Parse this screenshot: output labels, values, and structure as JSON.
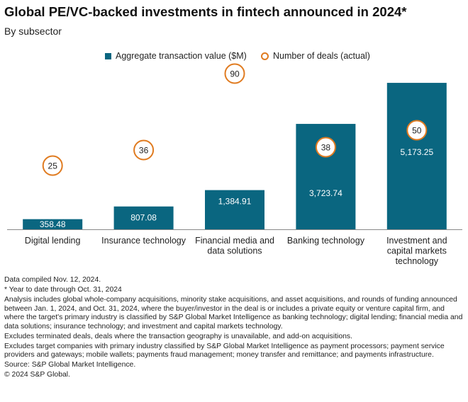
{
  "title": "Global PE/VC-backed investments in fintech announced in 2024*",
  "subtitle": "By subsector",
  "colors": {
    "bar": "#0a6680",
    "deals": "#e07b20",
    "bar_label": "#ffffff",
    "axis": "#888888"
  },
  "legend": {
    "bar_label": "Aggregate transaction value ($M)",
    "deals_label": "Number of deals (actual)"
  },
  "chart_data": {
    "type": "bar",
    "categories": [
      [
        "Digital lending"
      ],
      [
        "Insurance technology"
      ],
      [
        "Financial media and",
        "data solutions"
      ],
      [
        "Banking technology"
      ],
      [
        "Investment and",
        "capital markets",
        "technology"
      ]
    ],
    "series": [
      {
        "name": "Aggregate transaction value ($M)",
        "values": [
          358.48,
          807.08,
          1384.91,
          3723.74,
          5173.25
        ],
        "labels": [
          "358.48",
          "807.08",
          "1,384.91",
          "3,723.74",
          "5,173.25"
        ]
      },
      {
        "name": "Number of deals (actual)",
        "values": [
          25,
          36,
          90,
          38,
          50
        ],
        "labels": [
          "25",
          "36",
          "90",
          "38",
          "50"
        ]
      }
    ],
    "ylim": [
      0,
      5500
    ],
    "deals_lim": [
      0,
      100
    ]
  },
  "notes": [
    "Data compiled Nov. 12, 2024.",
    "* Year to date through Oct. 31, 2024",
    "Analysis includes global whole-company acquisitions, minority stake acquisitions, and asset acquisitions, and rounds of funding announced between Jan. 1, 2024, and Oct. 31, 2024, where the buyer/investor in the deal is or includes a private equity or venture capital firm, and where the target's primary industry is classified by S&P Global Market Intelligence as banking technology; digital lending; financial media and data solutions; insurance technology; and investment and capital markets technology.",
    "Excludes terminated deals,  deals where the transaction geography is unavailable, and add-on acquisitions.",
    "Excludes target companies with primary industry classified by S&P Global Market Intelligence as payment processors; payment service providers and gateways; mobile wallets; payments fraud management; money transfer and remittance; and payments infrastructure.",
    "Source: S&P Global Market Intelligence.",
    "© 2024 S&P Global."
  ]
}
